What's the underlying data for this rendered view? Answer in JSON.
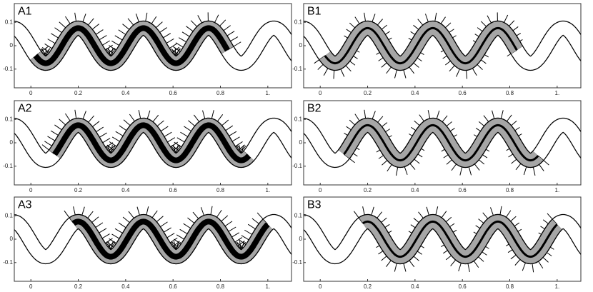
{
  "panels": [
    {
      "label": "A1",
      "xlim": [
        -0.07,
        1.1
      ],
      "ylim": [
        -0.18,
        0.18
      ],
      "xticks": [
        0,
        0.2,
        0.4,
        0.6,
        0.8,
        {
          "value": 1,
          "label": "1."
        }
      ],
      "yticks": [
        0.1,
        0,
        -0.1
      ],
      "segment": [
        0.02,
        0.83
      ]
    },
    {
      "label": "B1",
      "xlim": [
        -0.07,
        1.1
      ],
      "ylim": [
        -0.18,
        0.18
      ],
      "xticks": [
        0,
        0.2,
        0.4,
        0.6,
        0.8,
        {
          "value": 1,
          "label": "1."
        }
      ],
      "yticks": [
        0.1,
        0,
        -0.1
      ],
      "segment": [
        0.02,
        0.83
      ]
    },
    {
      "label": "A2",
      "xlim": [
        -0.07,
        1.1
      ],
      "ylim": [
        -0.18,
        0.18
      ],
      "xticks": [
        0,
        0.2,
        0.4,
        0.6,
        0.8,
        {
          "value": 1,
          "label": "1."
        }
      ],
      "yticks": [
        0.1,
        0,
        -0.1
      ],
      "segment": [
        0.1,
        0.92
      ]
    },
    {
      "label": "B2",
      "xlim": [
        -0.07,
        1.1
      ],
      "ylim": [
        -0.18,
        0.18
      ],
      "xticks": [
        0,
        0.2,
        0.4,
        0.6,
        0.8,
        {
          "value": 1,
          "label": "1."
        }
      ],
      "yticks": [
        0.1,
        0,
        -0.1
      ],
      "segment": [
        0.1,
        0.92
      ]
    },
    {
      "label": "A3",
      "xlim": [
        -0.07,
        1.1
      ],
      "ylim": [
        -0.18,
        0.18
      ],
      "xticks": [
        0,
        0.2,
        0.4,
        0.6,
        0.8,
        {
          "value": 1,
          "label": "1."
        }
      ],
      "yticks": [
        0.1,
        0,
        -0.1
      ],
      "segment": [
        0.18,
        1
      ]
    },
    {
      "label": "B3",
      "xlim": [
        -0.07,
        1.1
      ],
      "ylim": [
        -0.18,
        0.18
      ],
      "xticks": [
        0,
        0.2,
        0.4,
        0.6,
        0.8,
        {
          "value": 1,
          "label": "1."
        }
      ],
      "yticks": [
        0.1,
        0,
        -0.1
      ],
      "segment": [
        0.18,
        1
      ]
    }
  ]
}
